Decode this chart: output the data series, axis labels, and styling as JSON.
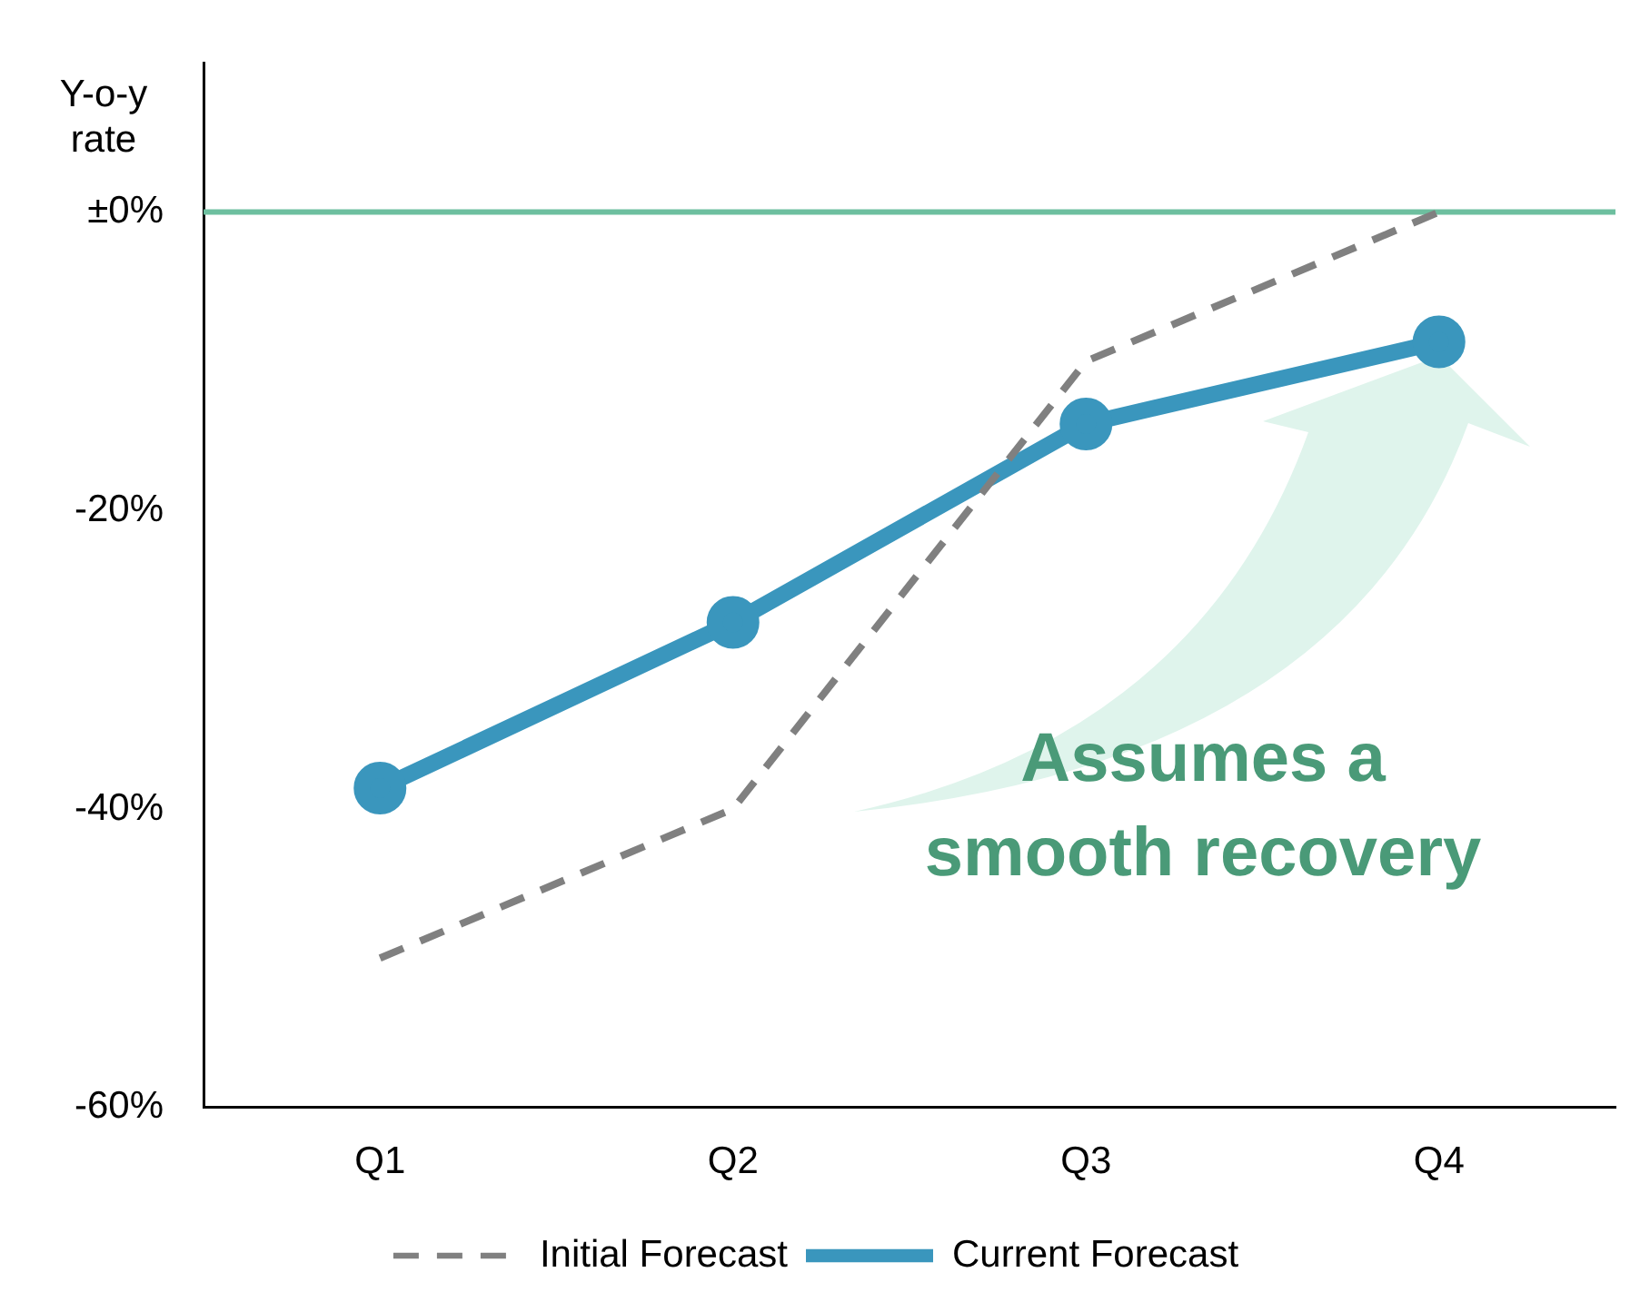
{
  "chart_data": {
    "type": "line",
    "ylabel": "Y-o-y rate",
    "categories": [
      "Q1",
      "Q2",
      "Q3",
      "Q4"
    ],
    "series": [
      {
        "name": "Initial Forecast",
        "color": "#808080",
        "values": [
          -50,
          -40,
          -10,
          0
        ],
        "line_style": "dashed",
        "marker": "none"
      },
      {
        "name": "Current Forecast",
        "color": "#3a96bd",
        "values": [
          -38.6,
          -27.5,
          -14.2,
          -8.7
        ],
        "line_style": "solid",
        "marker": "circle"
      }
    ],
    "ylim": [
      -60,
      10
    ],
    "yticks": [
      {
        "value": -60,
        "label": "-60%"
      },
      {
        "value": -40,
        "label": "-40%"
      },
      {
        "value": -20,
        "label": "-20%"
      },
      {
        "value": 0,
        "label": "±0%"
      }
    ],
    "ref_lines": [
      {
        "axis": "y",
        "value": 0,
        "color": "#6dbf9f"
      }
    ],
    "annotations": [
      "Assumes a smooth recovery"
    ],
    "grid": false,
    "legend": "bottom"
  }
}
